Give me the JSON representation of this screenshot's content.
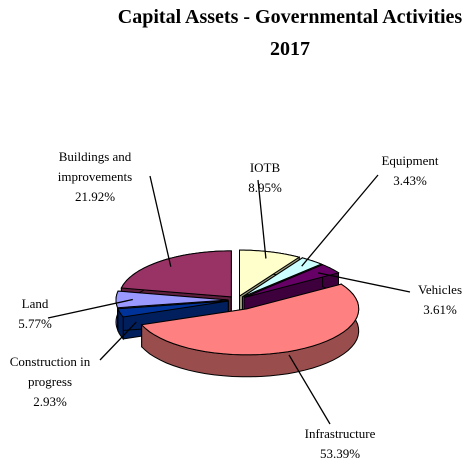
{
  "chart_data": {
    "type": "pie3d",
    "title": "Capital Assets - Governmental Activities",
    "subtitle": "2017",
    "categories": [
      "IOTB",
      "Equipment",
      "Vehicles",
      "Infrastructure",
      "Construction in progress",
      "Land",
      "Buildings and improvements"
    ],
    "values": [
      8.95,
      3.43,
      3.61,
      53.39,
      2.93,
      5.77,
      21.92
    ],
    "value_labels": [
      "8.95%",
      "3.43%",
      "3.61%",
      "53.39%",
      "2.93%",
      "5.77%",
      "21.92%"
    ],
    "colors": [
      "#ffffcc",
      "#ccffff",
      "#660066",
      "#ff8080",
      "#003399",
      "#9999ff",
      "#993366"
    ]
  }
}
